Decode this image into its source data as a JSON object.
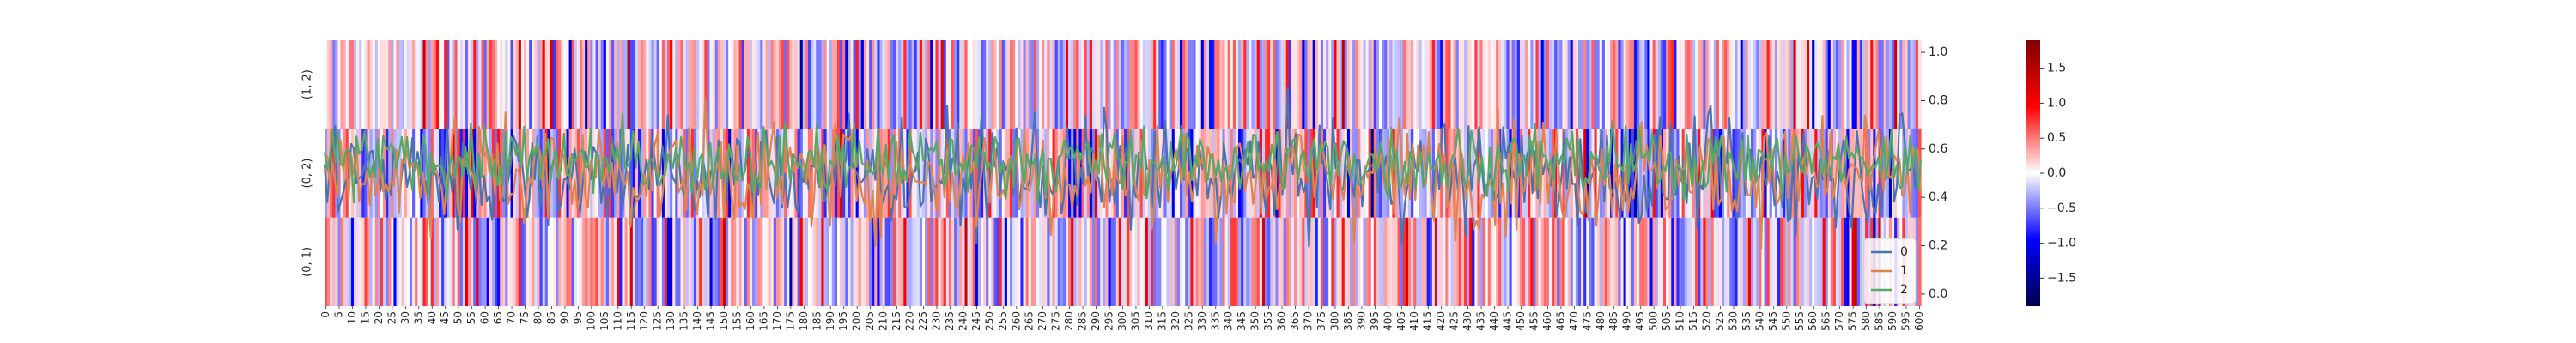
{
  "chart_data": [
    {
      "type": "heatmap",
      "rows": [
        "(0, 1)",
        "(0, 2)",
        "(1, 2)"
      ],
      "x_tick_step": 5,
      "x_count": 601,
      "x_last_label": "600",
      "colormap": "seismic",
      "color_range": [
        -1.9,
        1.9
      ],
      "colorbar_ticks": [
        "1.5",
        "1.0",
        "0.5",
        "0.0",
        "−0.5",
        "−1.0",
        "−1.5"
      ],
      "colorbar_tick_values": [
        1.5,
        1.0,
        0.5,
        0.0,
        -0.5,
        -1.0,
        -1.5
      ],
      "note": "values estimated; dense random-like signal per row"
    },
    {
      "type": "line",
      "x_range": [
        0,
        600
      ],
      "ylim": [
        -0.05,
        1.05
      ],
      "right_axis_ticks": [
        "1.0",
        "0.8",
        "0.6",
        "0.4",
        "0.2",
        "0.0"
      ],
      "right_axis_tick_values": [
        1.0,
        0.8,
        0.6,
        0.4,
        0.2,
        0.0
      ],
      "legend_location": "lower right",
      "series": [
        {
          "name": "0",
          "color": "#4c72b0",
          "mean": 0.5,
          "spread": 0.2
        },
        {
          "name": "1",
          "color": "#dd8452",
          "mean": 0.5,
          "spread": 0.2
        },
        {
          "name": "2",
          "color": "#55a868",
          "mean": 0.55,
          "spread": 0.13
        }
      ]
    }
  ]
}
